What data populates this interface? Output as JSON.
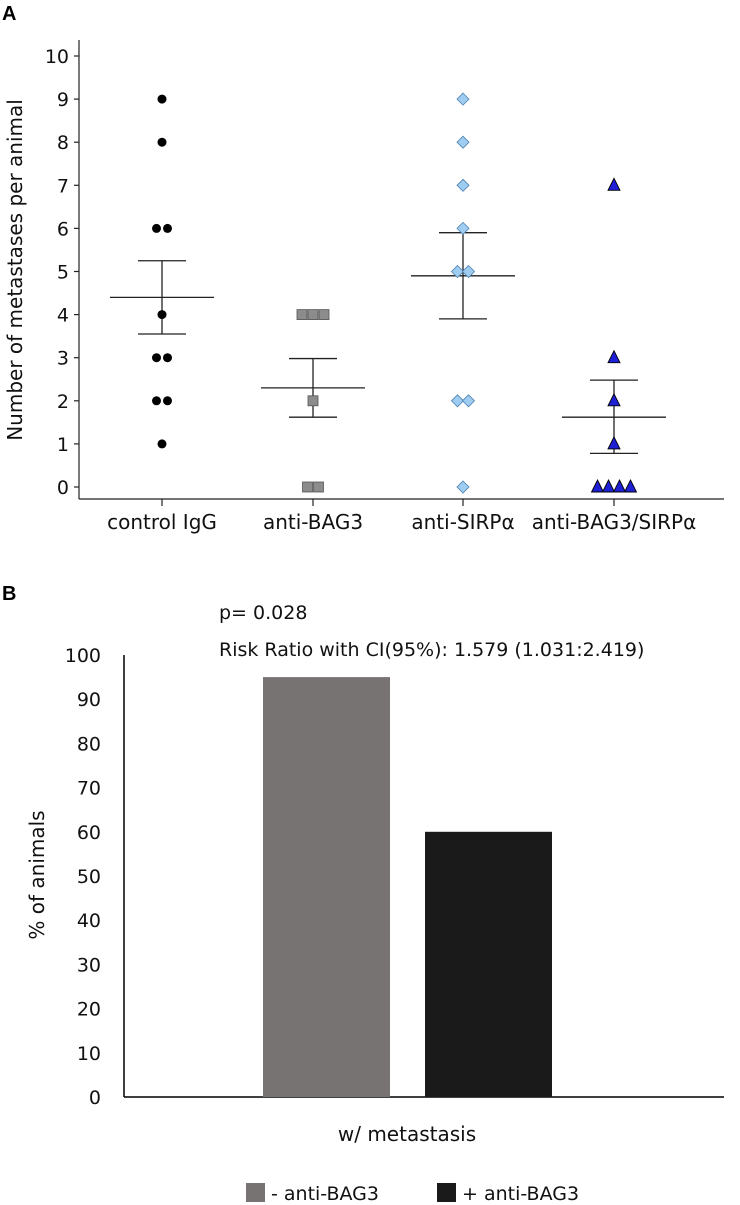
{
  "chart_data": [
    {
      "panel": "A",
      "type": "scatter",
      "ylabel": "Number of metastases per animal",
      "ylim": [
        0,
        10
      ],
      "yticks": [
        0,
        1,
        2,
        3,
        4,
        5,
        6,
        7,
        8,
        9,
        10
      ],
      "groups": [
        {
          "name": "control IgG",
          "marker": "circle",
          "color": "#000000",
          "values": [
            9,
            8,
            6,
            6,
            4,
            3,
            3,
            2,
            2,
            1
          ],
          "mean": 4.4,
          "sem_low": 3.55,
          "sem_high": 5.25
        },
        {
          "name": "anti-BAG3",
          "marker": "square",
          "color": "#8c8c8c",
          "values": [
            4,
            4,
            4,
            2,
            0,
            0
          ],
          "mean": 2.3,
          "sem_low": 1.62,
          "sem_high": 2.98
        },
        {
          "name": "anti-SIRPα",
          "marker": "diamond",
          "color": "#9fcdf2",
          "values": [
            9,
            8,
            7,
            6,
            5,
            5,
            2,
            2,
            0
          ],
          "mean": 4.9,
          "sem_low": 3.9,
          "sem_high": 5.9
        },
        {
          "name": "anti-BAG3/SIRPα",
          "marker": "triangle",
          "color": "#1f1fd6",
          "values": [
            7,
            3,
            2,
            1,
            0,
            0,
            0,
            0
          ],
          "mean": 1.62,
          "sem_low": 0.78,
          "sem_high": 2.48
        }
      ]
    },
    {
      "panel": "B",
      "type": "bar",
      "xlabel": "w/  metastasis",
      "ylabel": "% of animals",
      "ylim": [
        0,
        100
      ],
      "yticks": [
        0,
        10,
        20,
        30,
        40,
        50,
        60,
        70,
        80,
        90,
        100
      ],
      "series": [
        {
          "name": "- anti-BAG3",
          "values": [
            95
          ],
          "color": "#787373"
        },
        {
          "name": "+ anti-BAG3",
          "values": [
            60
          ],
          "color": "#1a1a1a"
        }
      ],
      "annotations": [
        "p= 0.028",
        "Risk Ratio with CI(95%): 1.579 (1.031:2.419)"
      ]
    }
  ]
}
